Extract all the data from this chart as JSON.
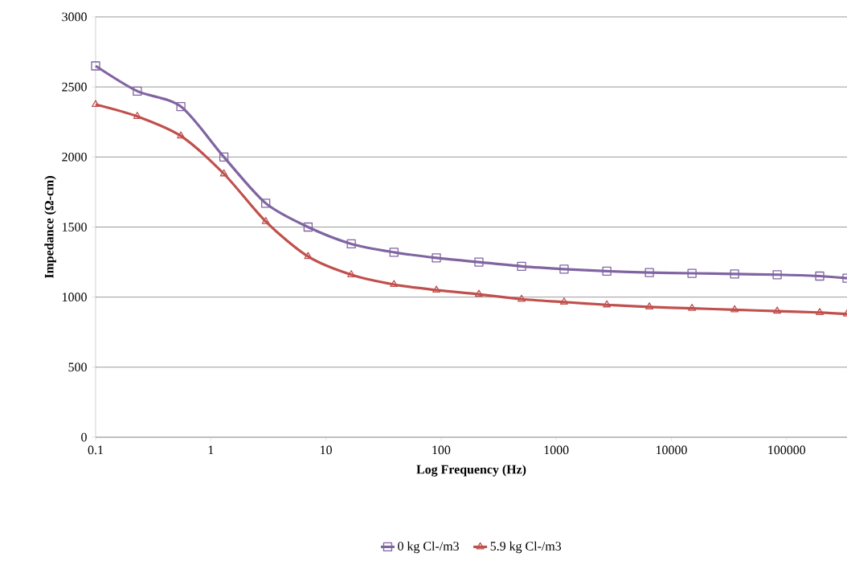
{
  "chart_data": {
    "type": "line",
    "xlabel": "Log Frequency (Hz)",
    "ylabel": "Impedance (Ω-cm)",
    "x": [
      0.1,
      0.23,
      0.55,
      1.3,
      3,
      7,
      16.6,
      39,
      91,
      213,
      500,
      1170,
      2750,
      6440,
      15100,
      35400,
      82900,
      194000,
      335000
    ],
    "series": [
      {
        "name": "0 kg Cl-/m3",
        "color": "#8064a2",
        "marker": "square",
        "values": [
          2650,
          2470,
          2360,
          2000,
          1670,
          1500,
          1380,
          1320,
          1280,
          1250,
          1220,
          1200,
          1185,
          1175,
          1170,
          1165,
          1160,
          1150,
          1135
        ]
      },
      {
        "name": "5.9 kg Cl-/m3",
        "color": "#c0504d",
        "marker": "triangle",
        "values": [
          2375,
          2290,
          2150,
          1880,
          1540,
          1290,
          1160,
          1090,
          1050,
          1020,
          985,
          965,
          945,
          930,
          920,
          910,
          900,
          890,
          880
        ]
      }
    ],
    "log": "x",
    "xlim": [
      0.1,
      335000
    ],
    "xticks": [
      0.1,
      1,
      10,
      100,
      1000,
      10000,
      100000
    ],
    "ylim": [
      0,
      3000
    ],
    "yticks": [
      0,
      500,
      1000,
      1500,
      2000,
      2500,
      3000
    ],
    "grid": "y",
    "legend": "bottom",
    "line_style": "solid"
  }
}
